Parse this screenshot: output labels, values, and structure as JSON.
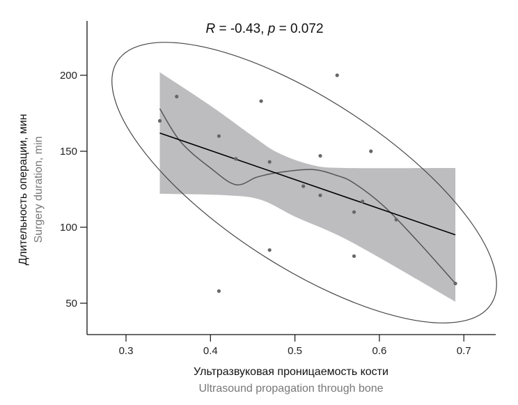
{
  "chart_data": {
    "type": "scatter",
    "title": "R = -0.43, p = 0.072",
    "title_parts": {
      "r_symbol": "R",
      "r_value": " = -0.43, ",
      "p_symbol": "p",
      "p_value": " = 0.072"
    },
    "xlabel": "Ультразвуковая проницаемость кости",
    "xlabel_en": "Ultrasound propagation through bone",
    "ylabel": "Длительность операции, мин",
    "ylabel_en": "Surgery duration, min",
    "xlim": [
      0.26,
      0.71
    ],
    "ylim": [
      26,
      234
    ],
    "xticks": [
      0.3,
      0.4,
      0.5,
      0.6,
      0.7
    ],
    "xtick_labels": [
      "0.3",
      "0.4",
      "0.5",
      "0.6",
      "0.7"
    ],
    "yticks": [
      50,
      100,
      150,
      200
    ],
    "ytick_labels": [
      "50",
      "100",
      "150",
      "200"
    ],
    "grid": false,
    "points": [
      {
        "x": 0.34,
        "y": 170
      },
      {
        "x": 0.36,
        "y": 186
      },
      {
        "x": 0.41,
        "y": 160
      },
      {
        "x": 0.41,
        "y": 58
      },
      {
        "x": 0.43,
        "y": 145
      },
      {
        "x": 0.46,
        "y": 183
      },
      {
        "x": 0.47,
        "y": 143
      },
      {
        "x": 0.47,
        "y": 85
      },
      {
        "x": 0.51,
        "y": 127
      },
      {
        "x": 0.53,
        "y": 147
      },
      {
        "x": 0.53,
        "y": 121
      },
      {
        "x": 0.55,
        "y": 200
      },
      {
        "x": 0.57,
        "y": 110
      },
      {
        "x": 0.57,
        "y": 81
      },
      {
        "x": 0.58,
        "y": 117
      },
      {
        "x": 0.59,
        "y": 150
      },
      {
        "x": 0.62,
        "y": 105
      },
      {
        "x": 0.69,
        "y": 63
      }
    ],
    "regression_line": [
      {
        "x": 0.34,
        "y": 162
      },
      {
        "x": 0.69,
        "y": 95
      }
    ],
    "confidence_band": {
      "upper": [
        {
          "x": 0.34,
          "y": 202
        },
        {
          "x": 0.4,
          "y": 180
        },
        {
          "x": 0.45,
          "y": 160
        },
        {
          "x": 0.48,
          "y": 149
        },
        {
          "x": 0.52,
          "y": 141
        },
        {
          "x": 0.56,
          "y": 139
        },
        {
          "x": 0.69,
          "y": 139
        }
      ],
      "lower": [
        {
          "x": 0.34,
          "y": 122
        },
        {
          "x": 0.42,
          "y": 121
        },
        {
          "x": 0.46,
          "y": 118
        },
        {
          "x": 0.5,
          "y": 107
        },
        {
          "x": 0.55,
          "y": 95
        },
        {
          "x": 0.6,
          "y": 80
        },
        {
          "x": 0.69,
          "y": 51
        }
      ]
    },
    "loess_curve": [
      {
        "x": 0.34,
        "y": 178
      },
      {
        "x": 0.365,
        "y": 156
      },
      {
        "x": 0.4,
        "y": 139
      },
      {
        "x": 0.43,
        "y": 128
      },
      {
        "x": 0.455,
        "y": 133
      },
      {
        "x": 0.48,
        "y": 136
      },
      {
        "x": 0.52,
        "y": 138
      },
      {
        "x": 0.55,
        "y": 134
      },
      {
        "x": 0.57,
        "y": 129
      },
      {
        "x": 0.605,
        "y": 114
      },
      {
        "x": 0.645,
        "y": 91
      },
      {
        "x": 0.69,
        "y": 63
      }
    ],
    "colors": {
      "points": "#666666",
      "band": "#bdbdbf",
      "regression": "#000000",
      "loess": "#555555",
      "ellipse": "#444444"
    }
  }
}
